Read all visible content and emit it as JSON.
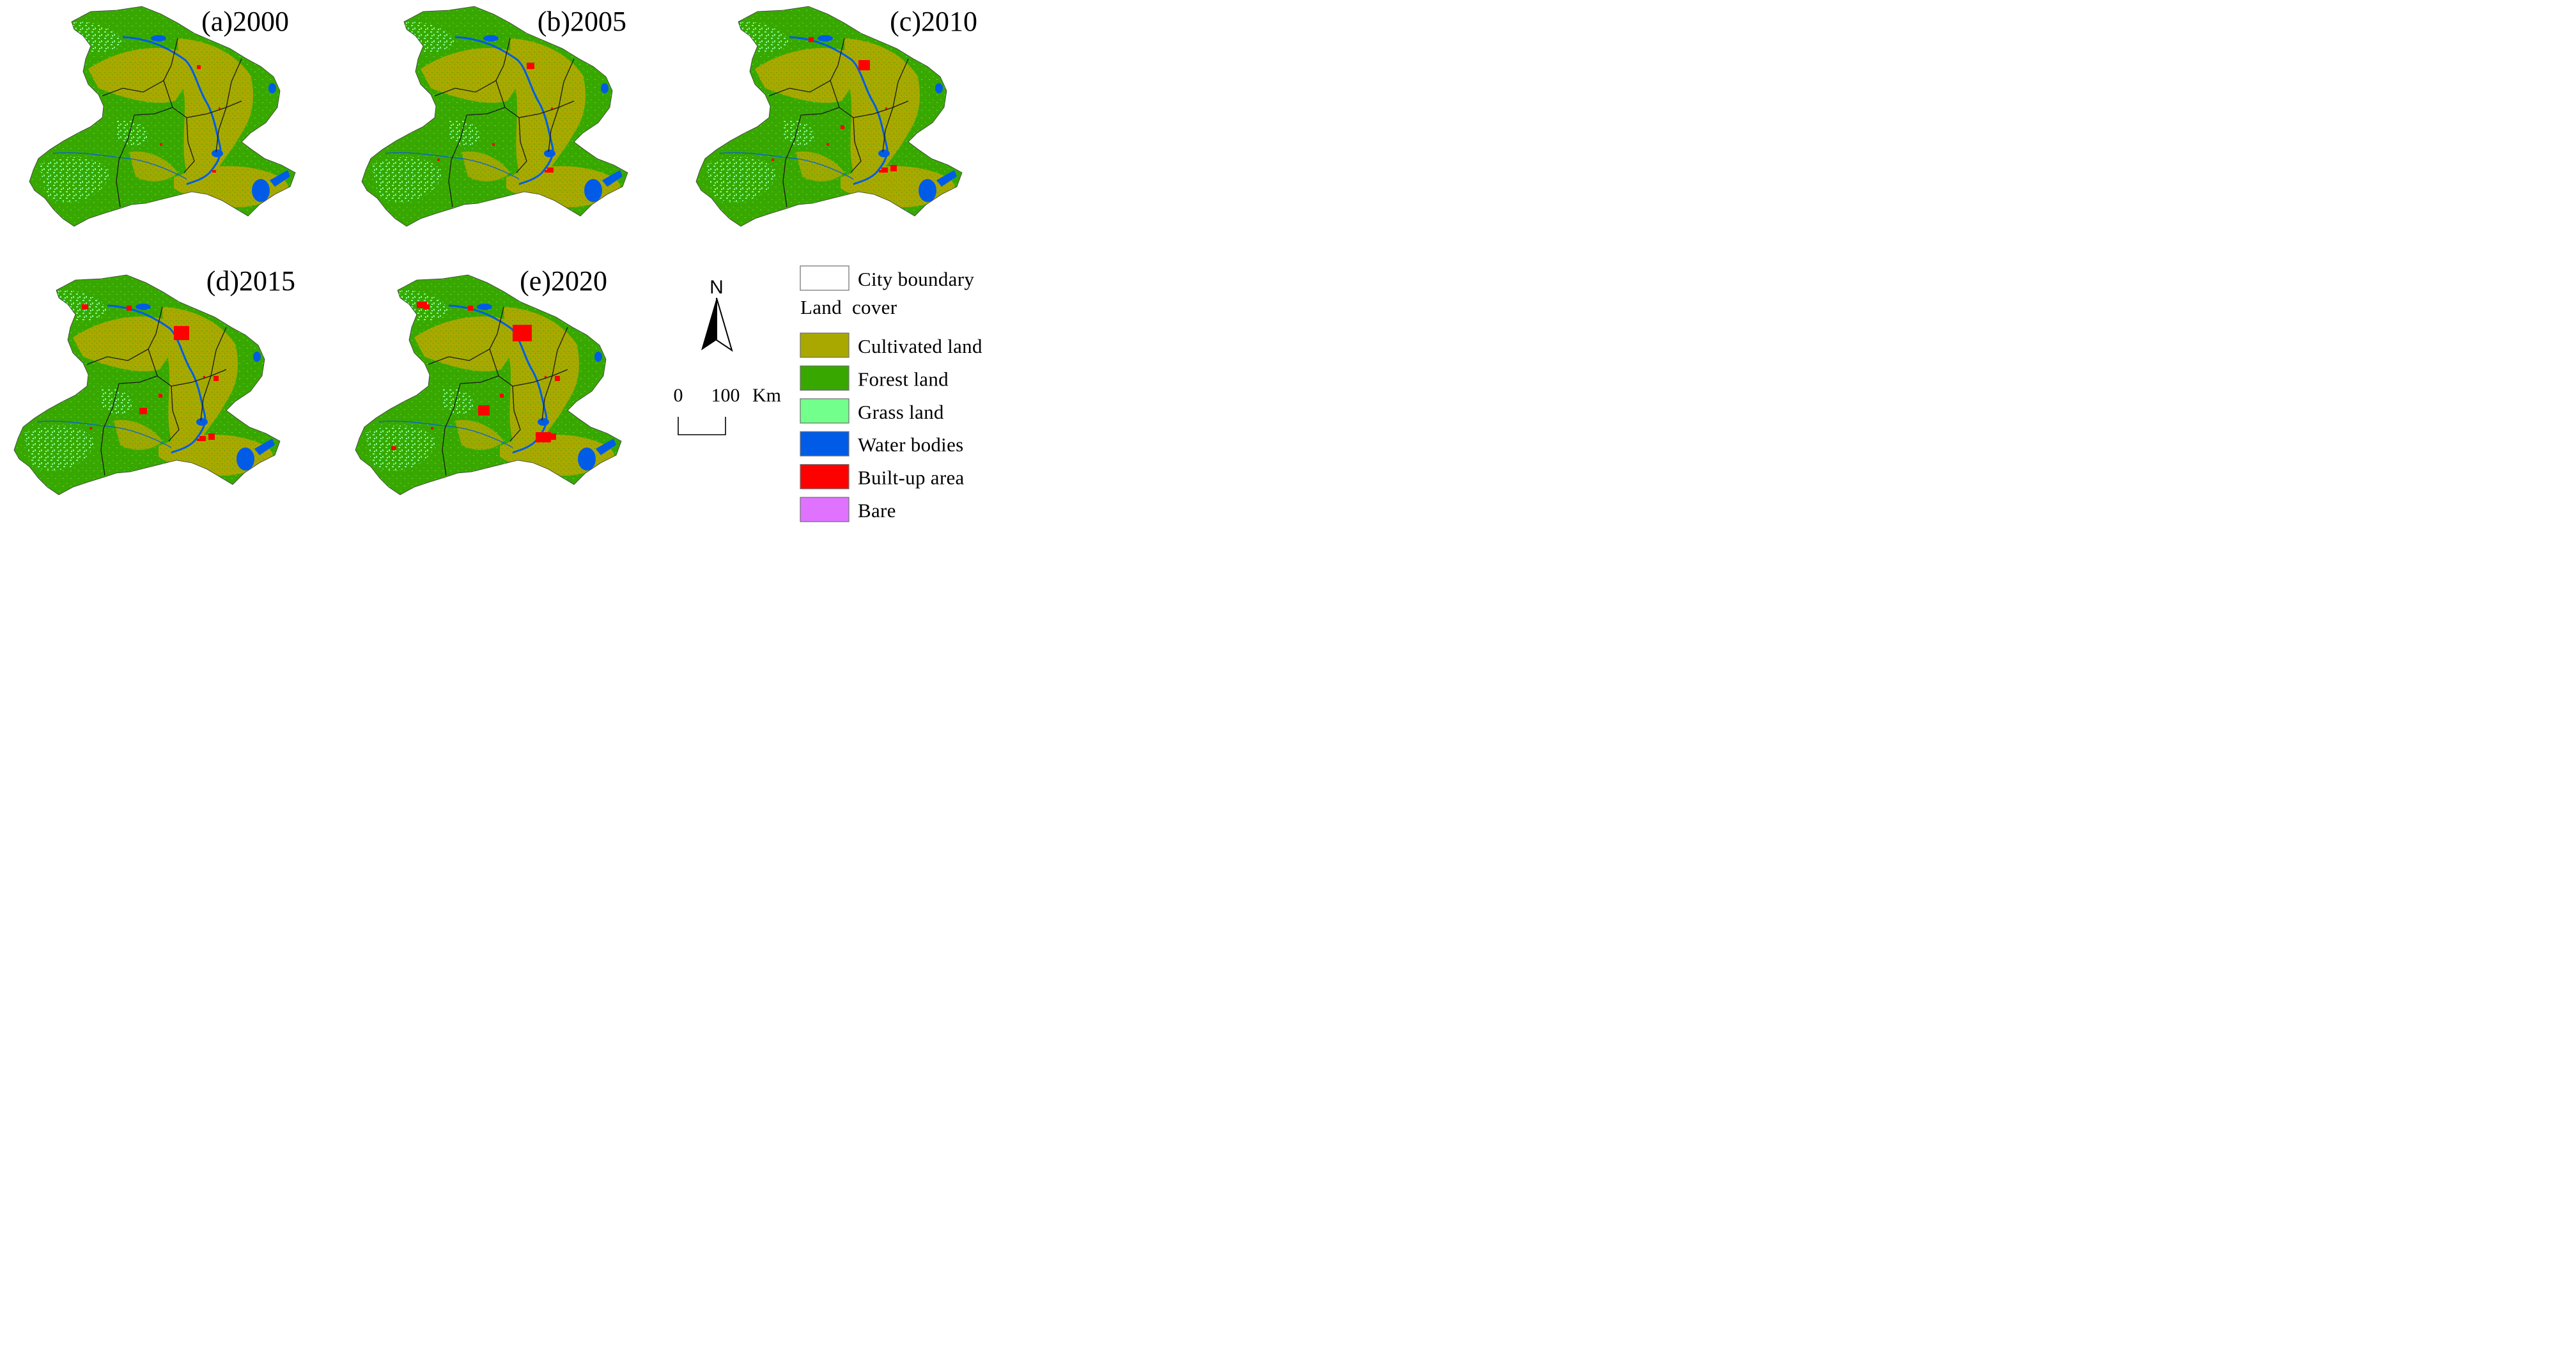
{
  "panels": [
    {
      "id": "a",
      "title": "(a)2000",
      "built_up_level": 0
    },
    {
      "id": "b",
      "title": "(b)2005",
      "built_up_level": 1
    },
    {
      "id": "c",
      "title": "(c)2010",
      "built_up_level": 2
    },
    {
      "id": "d",
      "title": "(d)2015",
      "built_up_level": 3
    },
    {
      "id": "e",
      "title": "(e)2020",
      "built_up_level": 4
    }
  ],
  "north_arrow": {
    "label": "N"
  },
  "scale_bar": {
    "start_label": "0",
    "end_label": "100",
    "unit": "Km"
  },
  "legend": {
    "boundary_label": "City boundary",
    "heading": "Land  cover",
    "items": [
      {
        "label": "Cultivated land",
        "color": "#a8a800",
        "icon": "cultivated-land-swatch"
      },
      {
        "label": "Forest land",
        "color": "#38a800",
        "icon": "forest-land-swatch"
      },
      {
        "label": "Grass land",
        "color": "#73ff8c",
        "icon": "grass-land-swatch"
      },
      {
        "label": "Water bodies",
        "color": "#005ce6",
        "icon": "water-bodies-swatch"
      },
      {
        "label": "Built-up area",
        "color": "#ff0000",
        "icon": "built-up-area-swatch"
      },
      {
        "label": "Bare",
        "color": "#df73ff",
        "icon": "bare-swatch"
      }
    ]
  }
}
